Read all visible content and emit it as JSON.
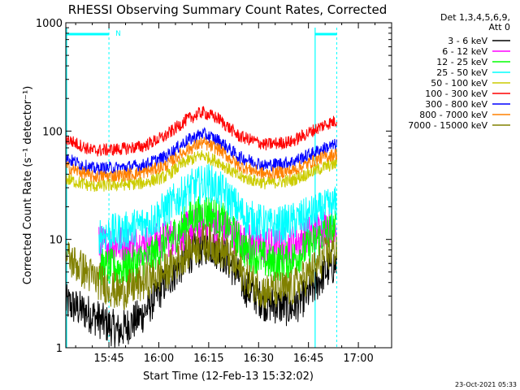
{
  "chart_data": {
    "type": "line",
    "title": "RHESSI Observing Summary Count Rates, Corrected",
    "xlabel": "Start Time (12-Feb-13 15:32:02)",
    "ylabel": "Corrected Count Rate (s⁻¹ detector⁻¹)",
    "ylog": true,
    "ylim": [
      1,
      1000
    ],
    "xlim": [
      "15:32:02",
      "17:10:00"
    ],
    "x_tick_labels": [
      "15:45",
      "16:00",
      "16:15",
      "16:30",
      "16:45",
      "17:00"
    ],
    "x_tick_minutes": [
      45,
      60,
      75,
      90,
      105,
      120
    ],
    "y_tick_labels": [
      "1",
      "10",
      "100",
      "1000"
    ],
    "y_tick_values": [
      1,
      10,
      100,
      1000
    ],
    "legend_header": [
      "Det 1,3,4,5,6,9,",
      "Att 0"
    ],
    "legend_position": "right",
    "timestamp": "23-Oct-2021 05:33",
    "night_flag_label": "N",
    "series": [
      {
        "name": "3 - 6 keV",
        "color": "#000000",
        "profile": [
          [
            32,
            2.6
          ],
          [
            40,
            2.0
          ],
          [
            48,
            1.4
          ],
          [
            55,
            2.0
          ],
          [
            62,
            4.0
          ],
          [
            70,
            7.5
          ],
          [
            75,
            9.0
          ],
          [
            80,
            7.0
          ],
          [
            86,
            3.6
          ],
          [
            92,
            2.6
          ],
          [
            100,
            2.3
          ],
          [
            106,
            3.4
          ],
          [
            110,
            5.0
          ],
          [
            113.5,
            6.0
          ]
        ]
      },
      {
        "name": "6 - 12 keV",
        "color": "#ff00ff",
        "profile": [
          [
            42,
            9.0
          ],
          [
            50,
            9.0
          ],
          [
            58,
            9.2
          ],
          [
            66,
            11.0
          ],
          [
            70,
            13.0
          ],
          [
            75,
            14.0
          ],
          [
            80,
            12.5
          ],
          [
            86,
            9.5
          ],
          [
            94,
            8.5
          ],
          [
            100,
            9.0
          ],
          [
            106,
            11.5
          ],
          [
            110,
            13.0
          ],
          [
            113.5,
            14.5
          ]
        ]
      },
      {
        "name": "12 - 25 keV",
        "color": "#00ff00",
        "profile": [
          [
            42,
            5.5
          ],
          [
            50,
            5.5
          ],
          [
            58,
            7.0
          ],
          [
            66,
            12.0
          ],
          [
            70,
            16.0
          ],
          [
            75,
            18.0
          ],
          [
            80,
            14.0
          ],
          [
            86,
            8.0
          ],
          [
            94,
            6.0
          ],
          [
            100,
            6.5
          ],
          [
            106,
            9.0
          ],
          [
            110,
            11.5
          ],
          [
            113.5,
            12.5
          ]
        ]
      },
      {
        "name": "25 - 50 keV",
        "color": "#00ffff",
        "profile": [
          [
            42,
            11.0
          ],
          [
            50,
            12.0
          ],
          [
            58,
            15.0
          ],
          [
            66,
            24.0
          ],
          [
            70,
            30.0
          ],
          [
            75,
            34.0
          ],
          [
            80,
            26.0
          ],
          [
            86,
            16.0
          ],
          [
            94,
            13.0
          ],
          [
            100,
            14.5
          ],
          [
            106,
            17.0
          ],
          [
            110,
            19.0
          ],
          [
            113.5,
            21.0
          ]
        ]
      },
      {
        "name": "50 - 100 keV",
        "color": "#cccc00",
        "profile": [
          [
            32,
            36.0
          ],
          [
            40,
            31.0
          ],
          [
            48,
            32.0
          ],
          [
            55,
            33.0
          ],
          [
            62,
            38.0
          ],
          [
            68,
            52.0
          ],
          [
            73,
            60.0
          ],
          [
            78,
            52.0
          ],
          [
            84,
            38.0
          ],
          [
            92,
            33.0
          ],
          [
            100,
            35.0
          ],
          [
            106,
            42.0
          ],
          [
            110,
            47.0
          ],
          [
            113.5,
            50.0
          ]
        ]
      },
      {
        "name": "100 - 300 keV",
        "color": "#ff0000",
        "profile": [
          [
            32,
            85.0
          ],
          [
            40,
            66.0
          ],
          [
            48,
            68.0
          ],
          [
            55,
            72.0
          ],
          [
            62,
            90.0
          ],
          [
            68,
            125.0
          ],
          [
            73,
            150.0
          ],
          [
            78,
            130.0
          ],
          [
            84,
            90.0
          ],
          [
            92,
            75.0
          ],
          [
            100,
            80.0
          ],
          [
            106,
            100.0
          ],
          [
            110,
            115.0
          ],
          [
            113.5,
            125.0
          ]
        ]
      },
      {
        "name": "300 - 800 keV",
        "color": "#0000ff",
        "profile": [
          [
            32,
            56.0
          ],
          [
            40,
            45.0
          ],
          [
            48,
            46.0
          ],
          [
            55,
            48.0
          ],
          [
            62,
            58.0
          ],
          [
            68,
            80.0
          ],
          [
            73,
            95.0
          ],
          [
            78,
            82.0
          ],
          [
            84,
            58.0
          ],
          [
            92,
            48.0
          ],
          [
            100,
            52.0
          ],
          [
            106,
            62.0
          ],
          [
            110,
            70.0
          ],
          [
            113.5,
            75.0
          ]
        ]
      },
      {
        "name": "800 - 7000 keV",
        "color": "#ff8000",
        "profile": [
          [
            32,
            47.0
          ],
          [
            40,
            38.0
          ],
          [
            48,
            39.0
          ],
          [
            55,
            41.0
          ],
          [
            62,
            48.0
          ],
          [
            68,
            66.0
          ],
          [
            73,
            78.0
          ],
          [
            78,
            68.0
          ],
          [
            84,
            48.0
          ],
          [
            92,
            40.0
          ],
          [
            100,
            43.0
          ],
          [
            106,
            52.0
          ],
          [
            110,
            58.0
          ],
          [
            113.5,
            62.0
          ]
        ]
      },
      {
        "name": "7000 - 15000 keV",
        "color": "#808000",
        "profile": [
          [
            32,
            7.0
          ],
          [
            40,
            4.5
          ],
          [
            48,
            3.2
          ],
          [
            55,
            4.0
          ],
          [
            62,
            5.0
          ],
          [
            70,
            8.5
          ],
          [
            75,
            9.5
          ],
          [
            80,
            7.5
          ],
          [
            86,
            4.5
          ],
          [
            92,
            3.3
          ],
          [
            100,
            3.5
          ],
          [
            106,
            5.0
          ],
          [
            110,
            7.0
          ],
          [
            113.5,
            8.5
          ]
        ]
      }
    ]
  }
}
